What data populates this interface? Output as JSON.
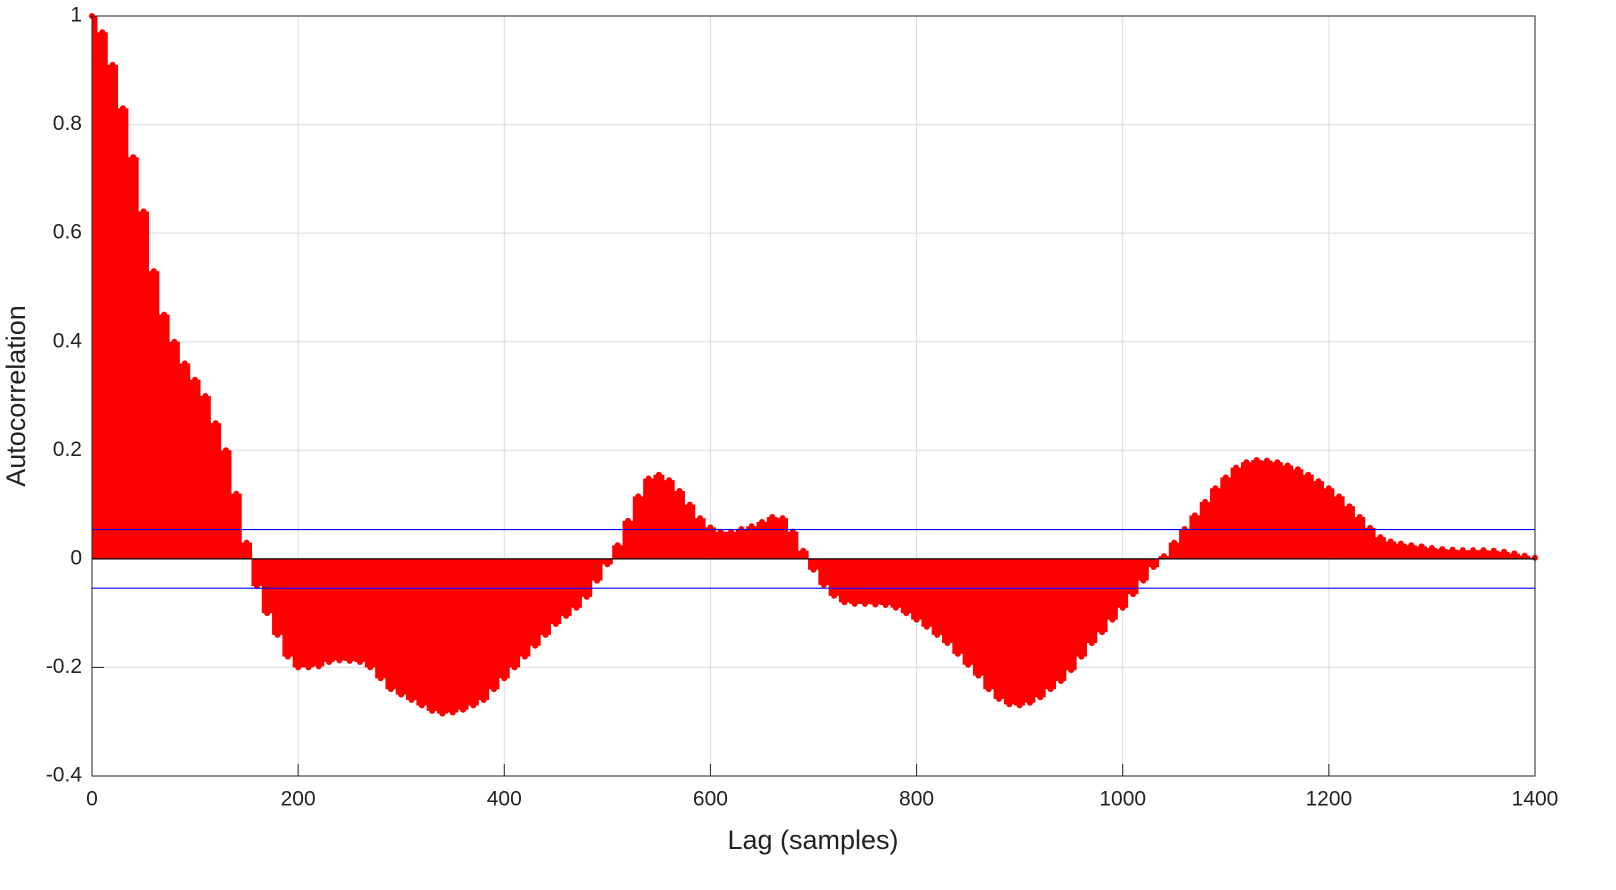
{
  "chart_data": {
    "type": "stem",
    "xlabel": "Lag (samples)",
    "ylabel": "Autocorrelation",
    "x": [
      0,
      10,
      20,
      30,
      40,
      50,
      60,
      70,
      80,
      90,
      100,
      110,
      120,
      130,
      140,
      150,
      160,
      170,
      180,
      190,
      200,
      210,
      220,
      230,
      240,
      250,
      260,
      270,
      280,
      290,
      300,
      310,
      320,
      330,
      340,
      350,
      360,
      370,
      380,
      390,
      400,
      410,
      420,
      430,
      440,
      450,
      460,
      470,
      480,
      490,
      500,
      510,
      520,
      530,
      540,
      550,
      560,
      570,
      580,
      590,
      600,
      610,
      620,
      630,
      640,
      650,
      660,
      670,
      680,
      690,
      700,
      710,
      720,
      730,
      740,
      750,
      760,
      770,
      780,
      790,
      800,
      810,
      820,
      830,
      840,
      850,
      860,
      870,
      880,
      890,
      900,
      910,
      920,
      930,
      940,
      950,
      960,
      970,
      980,
      990,
      1000,
      1010,
      1020,
      1030,
      1040,
      1050,
      1060,
      1070,
      1080,
      1090,
      1100,
      1110,
      1120,
      1130,
      1140,
      1150,
      1160,
      1170,
      1180,
      1190,
      1200,
      1210,
      1220,
      1230,
      1240,
      1250,
      1260,
      1270,
      1280,
      1290,
      1300,
      1310,
      1320,
      1330,
      1340,
      1350,
      1360,
      1370,
      1380,
      1390,
      1400
    ],
    "values": [
      1,
      0.97,
      0.91,
      0.83,
      0.74,
      0.64,
      0.53,
      0.45,
      0.4,
      0.36,
      0.33,
      0.3,
      0.25,
      0.2,
      0.12,
      0.03,
      -0.05,
      -0.1,
      -0.14,
      -0.18,
      -0.2,
      -0.2,
      -0.198,
      -0.19,
      -0.187,
      -0.188,
      -0.19,
      -0.2,
      -0.22,
      -0.24,
      -0.25,
      -0.26,
      -0.27,
      -0.28,
      -0.285,
      -0.283,
      -0.278,
      -0.27,
      -0.26,
      -0.24,
      -0.22,
      -0.2,
      -0.18,
      -0.16,
      -0.14,
      -0.12,
      -0.105,
      -0.09,
      -0.07,
      -0.04,
      -0.01,
      0.025,
      0.07,
      0.115,
      0.148,
      0.155,
      0.145,
      0.125,
      0.1,
      0.075,
      0.058,
      0.05,
      0.05,
      0.055,
      0.06,
      0.068,
      0.077,
      0.075,
      0.05,
      0.015,
      -0.02,
      -0.048,
      -0.068,
      -0.08,
      -0.083,
      -0.083,
      -0.084,
      -0.085,
      -0.09,
      -0.1,
      -0.112,
      -0.125,
      -0.14,
      -0.155,
      -0.175,
      -0.195,
      -0.215,
      -0.24,
      -0.258,
      -0.268,
      -0.27,
      -0.265,
      -0.255,
      -0.24,
      -0.225,
      -0.205,
      -0.18,
      -0.155,
      -0.135,
      -0.112,
      -0.09,
      -0.065,
      -0.04,
      -0.015,
      0.005,
      0.03,
      0.055,
      0.08,
      0.105,
      0.13,
      0.15,
      0.168,
      0.178,
      0.182,
      0.181,
      0.178,
      0.172,
      0.165,
      0.155,
      0.143,
      0.13,
      0.115,
      0.097,
      0.077,
      0.057,
      0.04,
      0.032,
      0.028,
      0.025,
      0.023,
      0.02,
      0.018,
      0.017,
      0.016,
      0.016,
      0.016,
      0.015,
      0.013,
      0.01,
      0.006,
      0.002
    ],
    "color": "#ff0000",
    "bounds": [
      0.054,
      -0.054
    ],
    "bounds_color": "#0000ff",
    "xlim": [
      0,
      1400
    ],
    "xticks": [
      0,
      200,
      400,
      600,
      800,
      1000,
      1200,
      1400
    ],
    "ylim": [
      -0.4,
      1
    ],
    "yticks": [
      -0.4,
      -0.2,
      0,
      0.2,
      0.4,
      0.6,
      0.8,
      1
    ],
    "grid": true
  }
}
